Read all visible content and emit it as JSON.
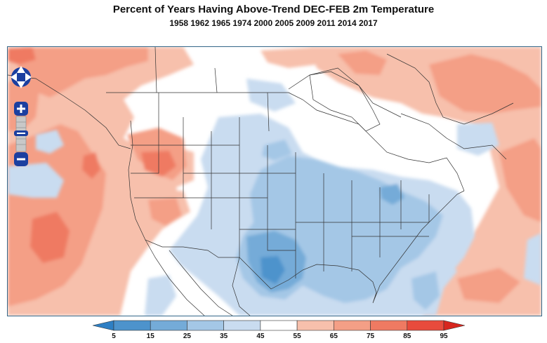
{
  "title": "Percent of Years Having Above-Trend DEC-FEB 2m Temperature",
  "subtitle": "1958 1962 1965 1974 2000 2005 2009 2011 2014 2017",
  "map_controls": {
    "pan_up": "pan-up-icon",
    "pan_down": "pan-down-icon",
    "pan_left": "pan-left-icon",
    "pan_right": "pan-right-icon",
    "zoom_in": "zoom-in-icon",
    "zoom_out": "zoom-out-icon"
  },
  "legend": {
    "ticks": [
      "5",
      "15",
      "25",
      "35",
      "45",
      "55",
      "65",
      "75",
      "85",
      "95"
    ],
    "colors": [
      "#2e7fc4",
      "#4d93cc",
      "#74abd8",
      "#a4c7e6",
      "#c9dcf0",
      "#ffffff",
      "#f7c0ac",
      "#f49f86",
      "#ef7a62",
      "#e84b3c",
      "#d7261e"
    ]
  }
}
